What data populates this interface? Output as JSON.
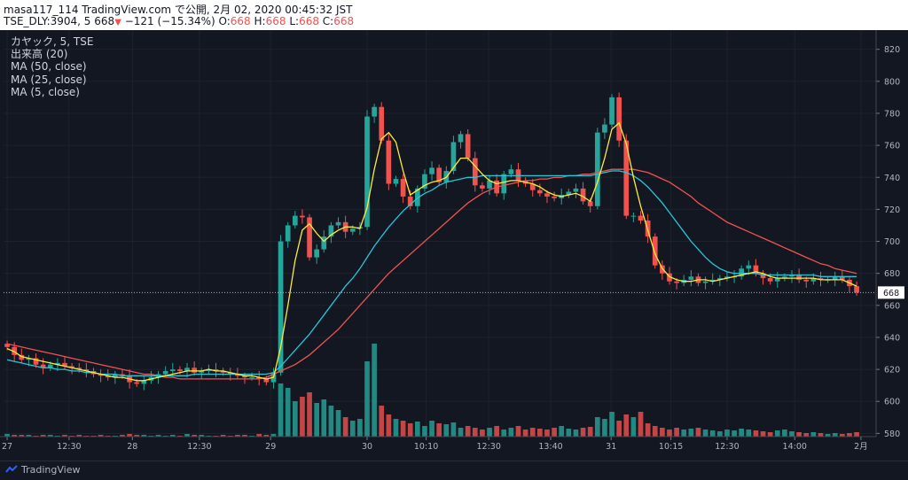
{
  "header": {
    "line1": "masa117_114 TradingView.com で公開, 2月 02, 2020 00:45:32 JST",
    "symbol": "TSE_DLY:3904, 5",
    "last": "668",
    "change": "−121 (−15.34%)",
    "o_label": "O:",
    "o_value": "668",
    "h_label": "H:",
    "h_value": "668",
    "l_label": "L:",
    "l_value": "668",
    "c_label": "C:",
    "c_value": "668"
  },
  "legend": {
    "title": "カヤック, 5, TSE",
    "volume": "出来高 (20)",
    "ma50": "MA (50, close)",
    "ma25": "MA (25, close)",
    "ma5": "MA (5, close)"
  },
  "footer": {
    "brand": "TradingView"
  },
  "chart_data": {
    "type": "candlestick",
    "title": "カヤック, 5, TSE",
    "price_axis": {
      "ticks": [
        580,
        600,
        620,
        640,
        660,
        680,
        700,
        720,
        740,
        760,
        780,
        800,
        820
      ],
      "range": [
        578,
        832
      ],
      "last_price": 668
    },
    "time_axis": {
      "ticks": [
        "27",
        "12:30",
        "28",
        "12:30",
        "29",
        "30",
        "10:10",
        "12:30",
        "13:40",
        "31",
        "10:15",
        "12:30",
        "14:00",
        "2月"
      ],
      "tick_index": [
        0,
        8.6,
        17.4,
        26.7,
        36.6,
        50,
        58.2,
        66.9,
        75.5,
        83.9,
        92.2,
        100,
        109.4,
        118.6
      ]
    },
    "colors": {
      "up": "#26a69a",
      "down": "#ef5350",
      "ma50": "#ef5350",
      "ma25": "#26c6da",
      "ma5": "#ffeb3b",
      "vol_up": "#26a69a",
      "vol_down": "#ef5350"
    },
    "close": [
      634,
      629,
      626,
      627,
      623,
      621,
      623,
      624,
      622,
      621,
      620,
      619,
      617,
      616,
      615,
      617,
      616,
      612,
      611,
      613,
      615,
      617,
      619,
      620,
      619,
      621,
      618,
      619,
      620,
      619,
      618,
      617,
      616,
      615,
      615,
      614,
      612,
      618,
      700,
      710,
      716,
      715,
      690,
      695,
      703,
      710,
      712,
      706,
      708,
      709,
      778,
      784,
      763,
      736,
      739,
      728,
      722,
      733,
      742,
      746,
      737,
      744,
      762,
      767,
      752,
      735,
      733,
      738,
      730,
      742,
      745,
      738,
      736,
      732,
      730,
      728,
      727,
      729,
      731,
      733,
      725,
      722,
      768,
      773,
      790,
      763,
      716,
      716,
      713,
      703,
      685,
      680,
      675,
      674,
      676,
      678,
      674,
      675,
      676,
      677,
      678,
      678,
      683,
      685,
      680,
      677,
      675,
      677,
      678,
      679,
      676,
      675,
      677,
      676,
      676,
      678,
      676,
      672,
      668
    ],
    "ma5": [
      633,
      631,
      628,
      627,
      626,
      625,
      624,
      623,
      622,
      621,
      620,
      619,
      618,
      617,
      616,
      615,
      615,
      614,
      613,
      613,
      614,
      615,
      616,
      617,
      618,
      619,
      619,
      619,
      620,
      619,
      619,
      618,
      617,
      616,
      616,
      615,
      614,
      615,
      634,
      660,
      688,
      707,
      711,
      705,
      700,
      704,
      707,
      709,
      709,
      708,
      721,
      745,
      764,
      768,
      762,
      744,
      729,
      732,
      735,
      737,
      738,
      740,
      746,
      752,
      752,
      747,
      742,
      738,
      736,
      737,
      738,
      738,
      737,
      736,
      734,
      731,
      729,
      728,
      729,
      730,
      728,
      725,
      737,
      752,
      770,
      774,
      761,
      740,
      722,
      707,
      692,
      683,
      678,
      676,
      675,
      675,
      676,
      676,
      675,
      676,
      677,
      678,
      679,
      680,
      681,
      680,
      678,
      677,
      677,
      677,
      677,
      677,
      677,
      676,
      676,
      676,
      676,
      674,
      672
    ],
    "ma25": [
      626,
      625,
      624,
      623,
      622,
      621,
      621,
      620,
      620,
      619,
      619,
      618,
      618,
      617,
      617,
      617,
      616,
      616,
      616,
      616,
      616,
      616,
      616,
      616,
      616,
      616,
      617,
      617,
      617,
      617,
      617,
      617,
      617,
      617,
      617,
      617,
      617,
      618,
      622,
      627,
      632,
      637,
      642,
      648,
      654,
      660,
      666,
      672,
      677,
      683,
      690,
      697,
      703,
      709,
      714,
      719,
      723,
      727,
      730,
      732,
      735,
      737,
      738,
      739,
      740,
      740,
      741,
      741,
      741,
      741,
      741,
      741,
      741,
      741,
      741,
      741,
      741,
      741,
      741,
      741,
      741,
      741,
      742,
      743,
      744,
      744,
      743,
      741,
      738,
      734,
      729,
      724,
      718,
      712,
      706,
      700,
      695,
      690,
      686,
      683,
      681,
      680,
      680,
      680,
      680,
      679,
      679,
      679,
      679,
      679,
      679,
      679,
      679,
      678,
      678,
      678,
      678,
      678,
      678
    ],
    "ma50": [
      636,
      635,
      634,
      633,
      632,
      631,
      630,
      629,
      628,
      627,
      626,
      625,
      624,
      623,
      622,
      621,
      620,
      619,
      618,
      617,
      617,
      616,
      615,
      615,
      614,
      614,
      614,
      614,
      614,
      614,
      614,
      614,
      614,
      614,
      614,
      614,
      615,
      617,
      619,
      621,
      623,
      626,
      629,
      633,
      637,
      641,
      645,
      650,
      655,
      660,
      665,
      670,
      675,
      680,
      684,
      688,
      692,
      696,
      700,
      704,
      708,
      712,
      716,
      720,
      724,
      727,
      730,
      732,
      734,
      735,
      736,
      737,
      738,
      738,
      739,
      739,
      740,
      740,
      741,
      741,
      742,
      742,
      743,
      744,
      745,
      745,
      745,
      745,
      744,
      743,
      741,
      739,
      737,
      734,
      731,
      728,
      724,
      721,
      718,
      715,
      712,
      710,
      708,
      706,
      704,
      702,
      700,
      698,
      696,
      694,
      692,
      690,
      688,
      686,
      685,
      683,
      682,
      681,
      680
    ],
    "volume": [
      3,
      2,
      2,
      2,
      1,
      2,
      2,
      1,
      2,
      1,
      2,
      1,
      1,
      2,
      1,
      1,
      2,
      3,
      2,
      2,
      1,
      2,
      1,
      2,
      1,
      3,
      2,
      2,
      1,
      1,
      2,
      1,
      2,
      2,
      1,
      3,
      2,
      3,
      60,
      55,
      40,
      45,
      50,
      38,
      42,
      35,
      30,
      22,
      18,
      20,
      85,
      105,
      35,
      25,
      20,
      18,
      15,
      17,
      12,
      18,
      15,
      14,
      16,
      10,
      12,
      10,
      8,
      10,
      12,
      8,
      10,
      12,
      8,
      10,
      9,
      8,
      10,
      12,
      9,
      8,
      10,
      11,
      22,
      20,
      28,
      18,
      25,
      22,
      28,
      15,
      12,
      10,
      8,
      10,
      8,
      9,
      10,
      8,
      7,
      6,
      8,
      7,
      9,
      8,
      7,
      6,
      5,
      7,
      8,
      6,
      5,
      4,
      5,
      4,
      3,
      4,
      3,
      4,
      5
    ]
  }
}
